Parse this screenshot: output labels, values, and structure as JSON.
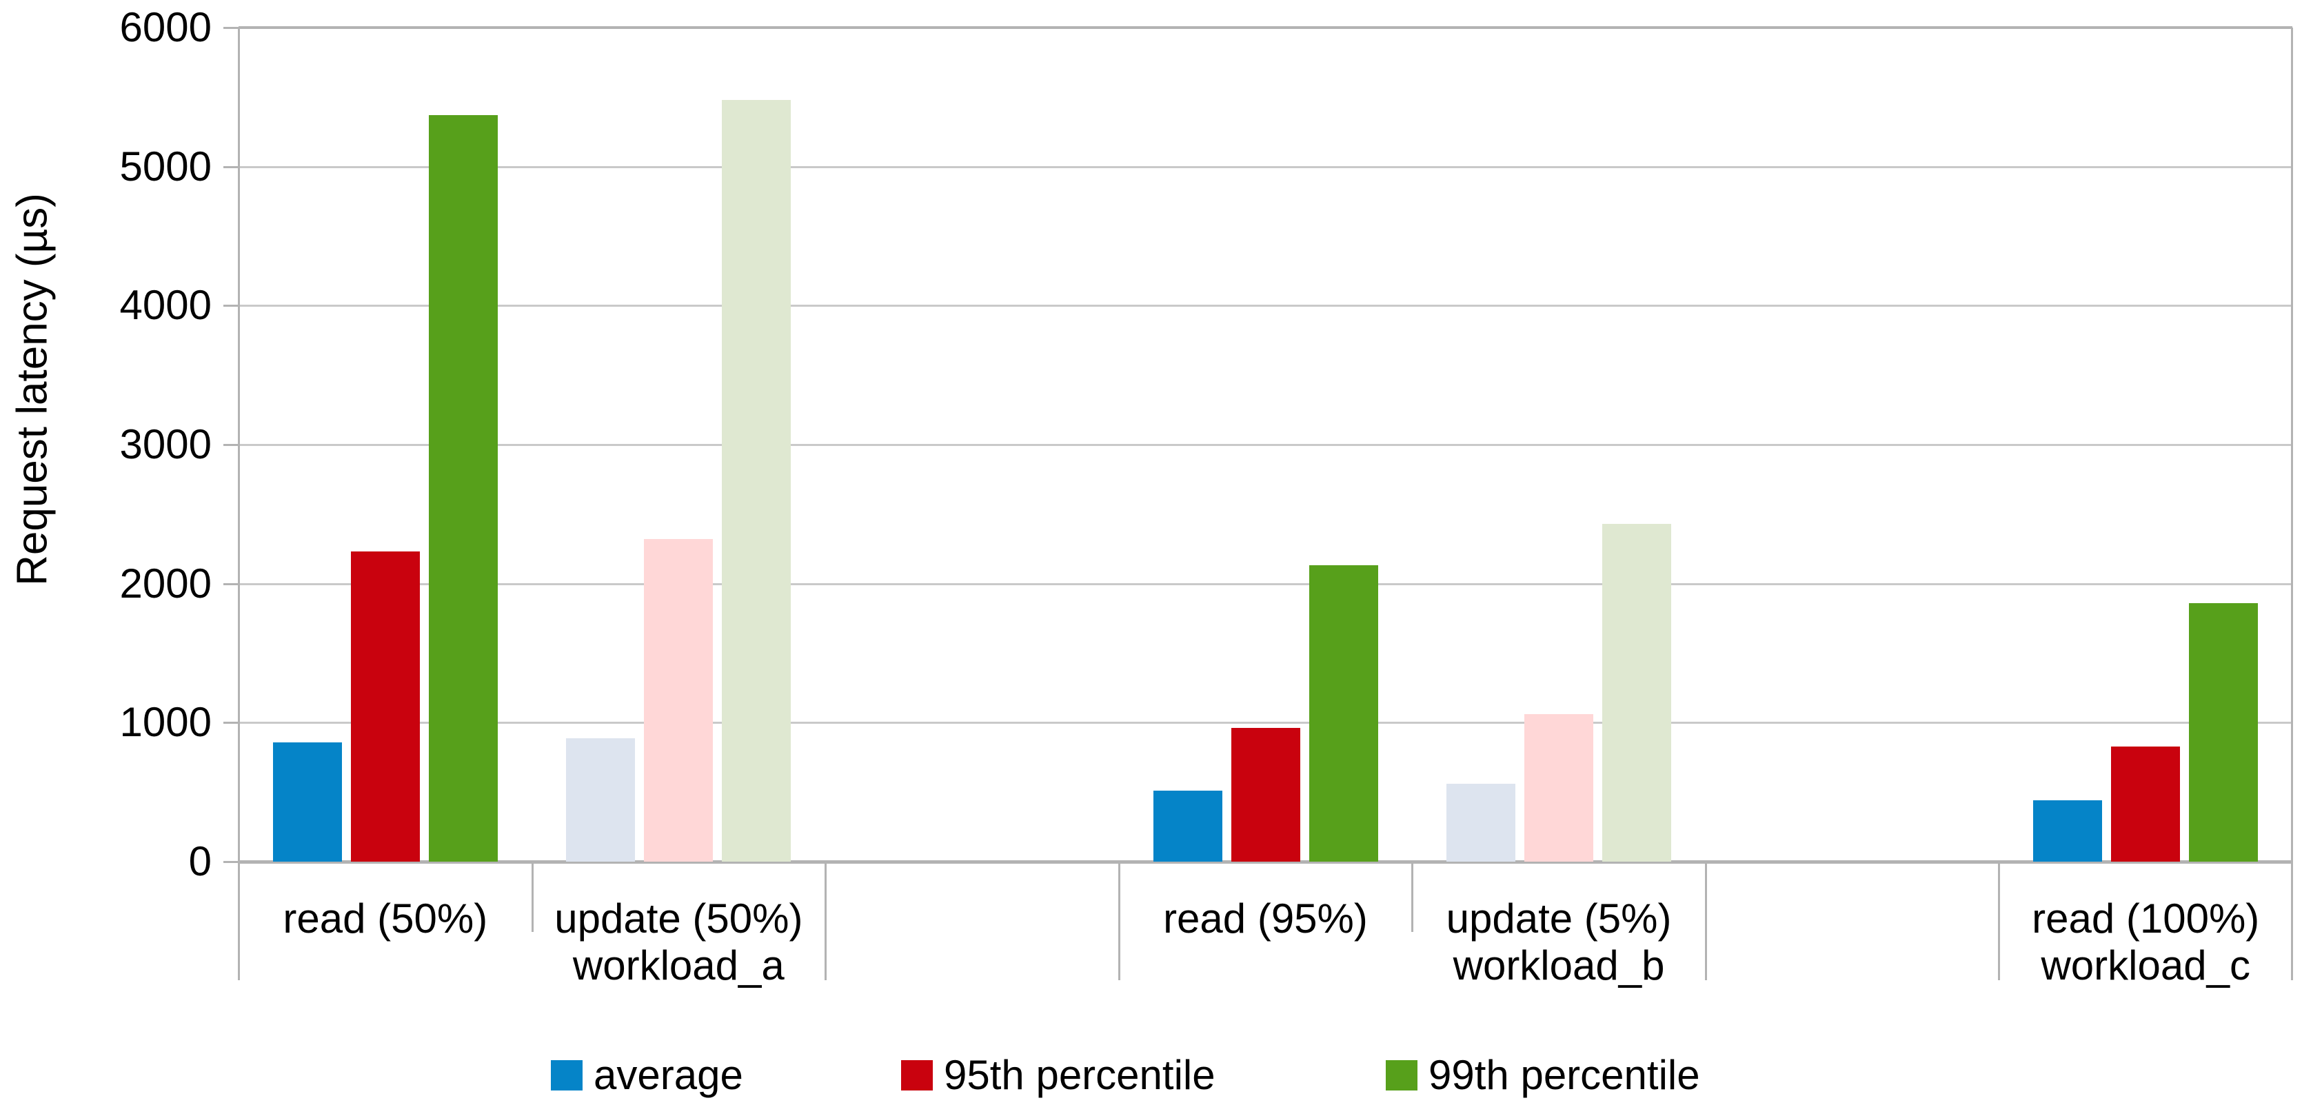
{
  "chart_data": {
    "type": "bar",
    "title": "",
    "xlabel": "",
    "ylabel": "Request latency (µs)",
    "ylim": [
      0,
      6000
    ],
    "yticks": [
      0,
      1000,
      2000,
      3000,
      4000,
      5000,
      6000
    ],
    "grid": true,
    "legend_position": "bottom",
    "series": [
      {
        "name": "average",
        "color": "#0584c8",
        "muted_color": "#dde4ef"
      },
      {
        "name": "95th percentile",
        "color": "#c9020e",
        "muted_color": "#ffd7d7"
      },
      {
        "name": "99th percentile",
        "color": "#57a01b",
        "muted_color": "#dfe8d1"
      }
    ],
    "groups": [
      {
        "label": "workload_a",
        "categories": [
          {
            "label": "read (50%)",
            "muted": false,
            "values": [
              860,
              2230,
              5370
            ]
          },
          {
            "label": "update (50%)",
            "muted": true,
            "values": [
              890,
              2320,
              5480
            ]
          }
        ]
      },
      {
        "label": "workload_b",
        "categories": [
          {
            "label": "read (95%)",
            "muted": false,
            "values": [
              510,
              960,
              2130
            ]
          },
          {
            "label": "update (5%)",
            "muted": true,
            "values": [
              560,
              1060,
              2430
            ]
          }
        ]
      },
      {
        "label": "workload_c",
        "categories": [
          {
            "label": "read (100%)",
            "muted": false,
            "values": [
              440,
              830,
              1860
            ]
          }
        ]
      }
    ],
    "colors": {
      "background": "#ffffff",
      "grid": "#c9c9c9",
      "axis": "#b3b3b3",
      "text": "#000000"
    }
  }
}
